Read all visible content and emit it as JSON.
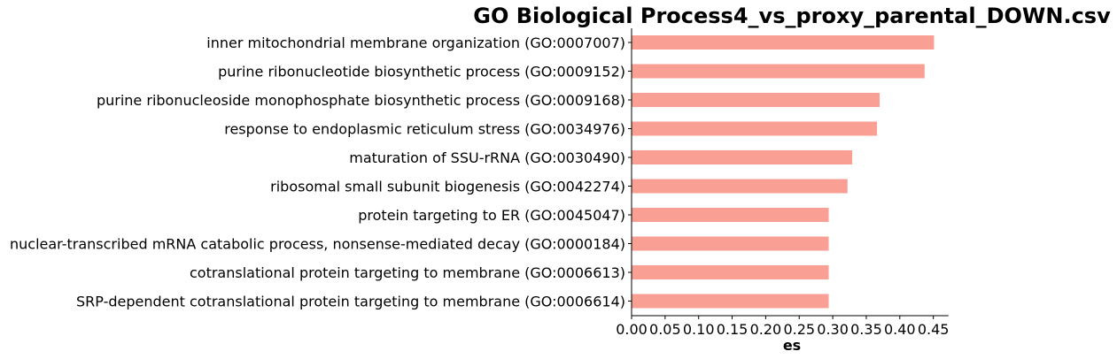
{
  "chart_data": {
    "type": "bar",
    "orientation": "horizontal",
    "title": "GO Biological Process4_vs_proxy_parental_DOWN.csv",
    "xlabel": "es",
    "ylabel": "",
    "xlim": [
      0,
      0.47
    ],
    "xticks": [
      "0.00",
      "0.05",
      "0.10",
      "0.15",
      "0.20",
      "0.25",
      "0.30",
      "0.35",
      "0.40",
      "0.45"
    ],
    "bar_color": "#fa9f94",
    "grid": false,
    "categories": [
      "inner mitochondrial membrane organization (GO:0007007)",
      "purine ribonucleotide biosynthetic process (GO:0009152)",
      "purine ribonucleoside monophosphate biosynthetic process (GO:0009168)",
      "response to endoplasmic reticulum stress (GO:0034976)",
      "maturation of SSU-rRNA (GO:0030490)",
      "ribosomal small subunit biogenesis (GO:0042274)",
      "protein targeting to ER (GO:0045047)",
      "nuclear-transcribed mRNA catabolic process, nonsense-mediated decay (GO:0000184)",
      "cotranslational protein targeting to membrane (GO:0006613)",
      "SRP-dependent cotranslational protein targeting to membrane (GO:0006614)"
    ],
    "values": [
      0.451,
      0.437,
      0.37,
      0.366,
      0.329,
      0.322,
      0.294,
      0.294,
      0.294,
      0.294
    ]
  }
}
